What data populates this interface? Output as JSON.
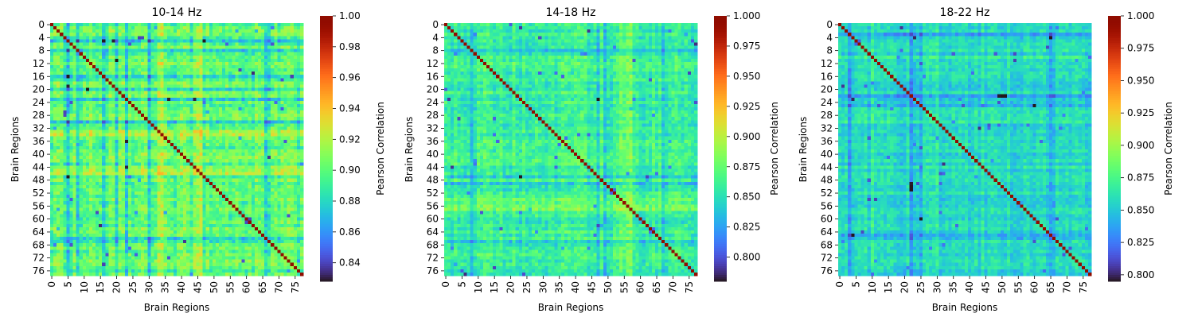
{
  "chart_data": [
    {
      "type": "heatmap",
      "title": "10-14 Hz",
      "xlabel": "Brain Regions",
      "ylabel": "Brain Regions",
      "n": 78,
      "x_ticks": [
        "0",
        "5",
        "10",
        "15",
        "20",
        "25",
        "30",
        "35",
        "40",
        "45",
        "50",
        "55",
        "60",
        "65",
        "70",
        "75"
      ],
      "y_ticks": [
        "0",
        "4",
        "8",
        "12",
        "16",
        "20",
        "24",
        "28",
        "32",
        "36",
        "40",
        "44",
        "48",
        "52",
        "56",
        "60",
        "64",
        "68",
        "72",
        "76"
      ],
      "colorbar": {
        "label": "Pearson Correlation",
        "min": 0.828,
        "max": 1.0,
        "ticks": [
          "0.84",
          "0.86",
          "0.88",
          "0.90",
          "0.92",
          "0.94",
          "0.96",
          "0.98",
          "1.00"
        ]
      },
      "value_summary": {
        "diagonal": 1.0,
        "typical_range": [
          0.88,
          0.92
        ],
        "low_regions": [
          5,
          8,
          16,
          20,
          23,
          30,
          66,
          67
        ],
        "high_regions": [
          33,
          34,
          44,
          45,
          46
        ]
      }
    },
    {
      "type": "heatmap",
      "title": "14-18 Hz",
      "xlabel": "Brain Regions",
      "ylabel": "Brain Regions",
      "n": 78,
      "x_ticks": [
        "0",
        "5",
        "10",
        "15",
        "20",
        "25",
        "30",
        "35",
        "40",
        "45",
        "50",
        "55",
        "60",
        "65",
        "70",
        "75"
      ],
      "y_ticks": [
        "0",
        "4",
        "8",
        "12",
        "16",
        "20",
        "24",
        "28",
        "32",
        "36",
        "40",
        "44",
        "48",
        "52",
        "56",
        "60",
        "64",
        "68",
        "72",
        "76"
      ],
      "colorbar": {
        "label": "Pearson Correlation",
        "min": 0.78,
        "max": 1.0,
        "ticks": [
          "0.800",
          "0.825",
          "0.850",
          "0.875",
          "0.900",
          "0.925",
          "0.950",
          "0.975",
          "1.000"
        ]
      },
      "value_summary": {
        "diagonal": 1.0,
        "typical_range": [
          0.84,
          0.88
        ],
        "low_regions": [
          8,
          47,
          49,
          67
        ],
        "high_regions": [
          54,
          55,
          56,
          57
        ]
      }
    },
    {
      "type": "heatmap",
      "title": "18-22 Hz",
      "xlabel": "Brain Regions",
      "ylabel": "Brain Regions",
      "n": 78,
      "x_ticks": [
        "0",
        "5",
        "10",
        "15",
        "20",
        "25",
        "30",
        "35",
        "40",
        "45",
        "50",
        "55",
        "60",
        "65",
        "70",
        "75"
      ],
      "y_ticks": [
        "0",
        "4",
        "8",
        "12",
        "16",
        "20",
        "24",
        "28",
        "32",
        "36",
        "40",
        "44",
        "48",
        "52",
        "56",
        "60",
        "64",
        "68",
        "72",
        "76"
      ],
      "colorbar": {
        "label": "Pearson Correlation",
        "min": 0.795,
        "max": 1.0,
        "ticks": [
          "0.800",
          "0.825",
          "0.850",
          "0.875",
          "0.900",
          "0.925",
          "0.950",
          "0.975",
          "1.000"
        ]
      },
      "value_summary": {
        "diagonal": 1.0,
        "typical_range": [
          0.84,
          0.87
        ],
        "low_regions": [
          3,
          22,
          25,
          65,
          66
        ],
        "high_regions": [
          8,
          10,
          30,
          44
        ]
      }
    }
  ]
}
